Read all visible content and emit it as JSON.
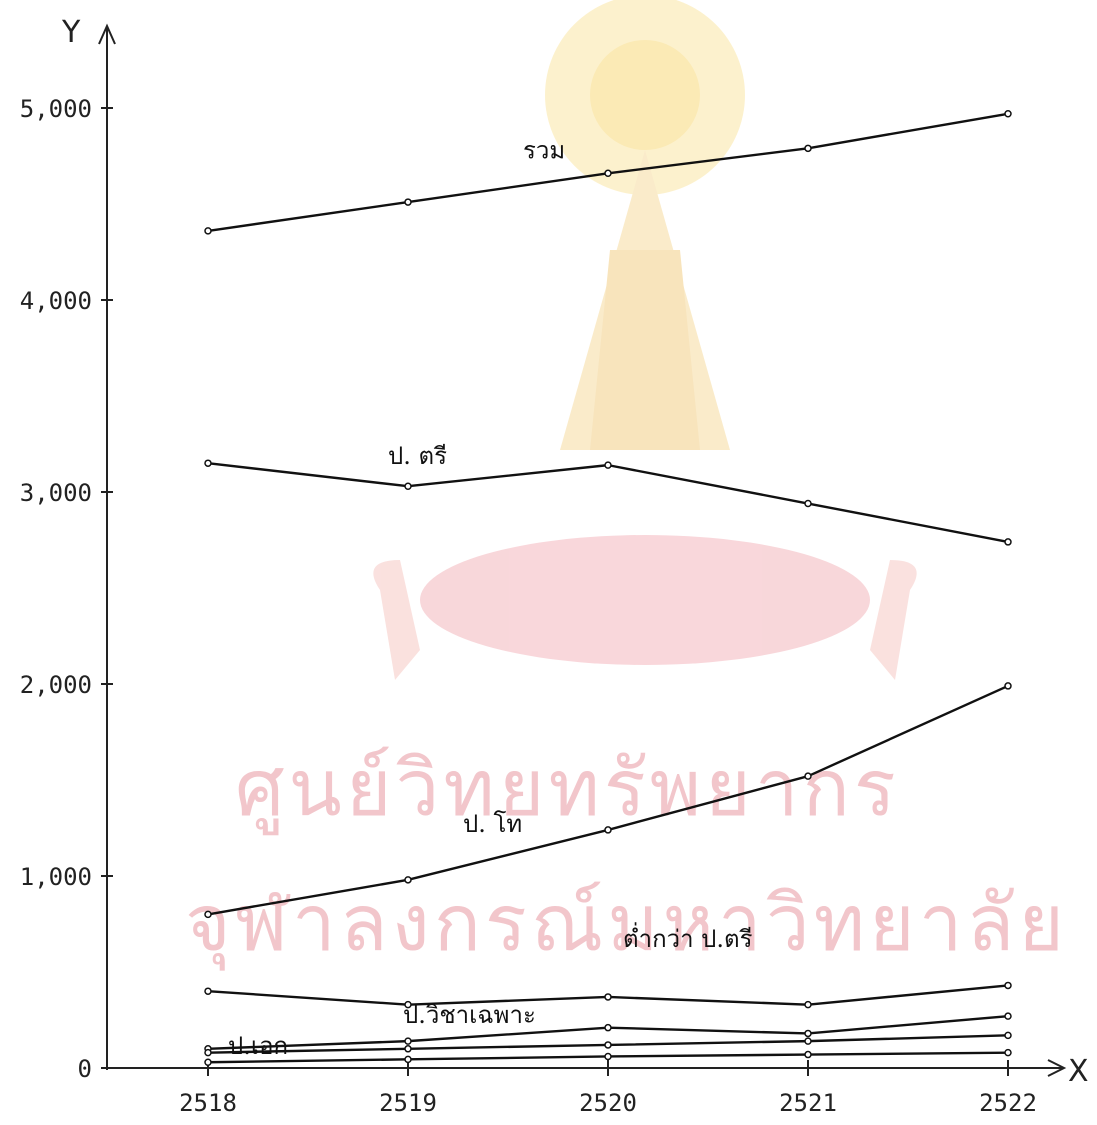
{
  "watermark": {
    "line1": "ศูนย์วิทยทรัพยากร",
    "line2": "จุฬาลงกรณ์มหาวิทยาลัย",
    "emblem": "chulalongkorn-university-emblem"
  },
  "chart_data": {
    "type": "line",
    "title": "",
    "xlabel": "X",
    "ylabel": "Y",
    "x": [
      2518,
      2519,
      2520,
      2521,
      2522
    ],
    "xticks": [
      "2518",
      "2519",
      "2520",
      "2521",
      "2522"
    ],
    "yticks": [
      "0",
      "1,000",
      "2,000",
      "3,000",
      "4,000",
      "5,000"
    ],
    "ylim": [
      0,
      5000
    ],
    "grid": false,
    "line_color": "#111111",
    "series": [
      {
        "name": "รวม",
        "values": [
          4360,
          4510,
          4660,
          4790,
          4970
        ]
      },
      {
        "name": "ป. ตรี",
        "values": [
          3150,
          3030,
          3140,
          2940,
          2740
        ]
      },
      {
        "name": "ป. โท",
        "values": [
          800,
          980,
          1240,
          1520,
          1990
        ]
      },
      {
        "name": "ต่ำกว่า ป.ตรี",
        "values": [
          400,
          330,
          370,
          330,
          430
        ]
      },
      {
        "name": "ป.วิชาเฉพาะ",
        "values": [
          100,
          140,
          210,
          180,
          270
        ]
      },
      {
        "name": "",
        "values": [
          80,
          100,
          120,
          140,
          170
        ]
      },
      {
        "name": "ป.เอก",
        "values": [
          30,
          45,
          60,
          70,
          80
        ]
      }
    ]
  }
}
